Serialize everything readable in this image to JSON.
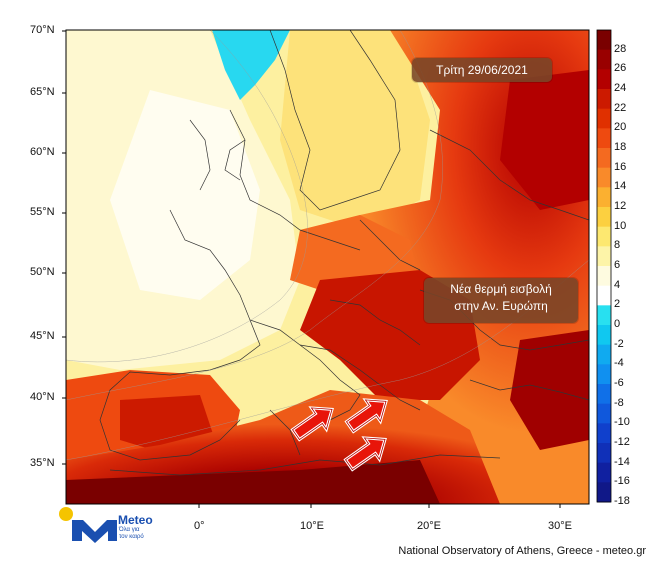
{
  "title_box": "Τρίτη 29/06/2021",
  "annotation": {
    "line1": "Νέα θερμή εισβολή",
    "line2": "στην Αν. Ευρώπη"
  },
  "latitude_labels": [
    "70°N",
    "65°N",
    "60°N",
    "55°N",
    "50°N",
    "45°N",
    "40°N",
    "35°N"
  ],
  "longitude_labels": [
    "0°",
    "10°E",
    "20°E",
    "30°E"
  ],
  "colorbar": {
    "labels": [
      "28",
      "26",
      "24",
      "22",
      "20",
      "18",
      "16",
      "14",
      "12",
      "10",
      "8",
      "6",
      "4",
      "2",
      "0",
      "-2",
      "-4",
      "-6",
      "-8",
      "-10",
      "-12",
      "-14",
      "-16",
      "-18"
    ],
    "colors": [
      "#7a0000",
      "#990000",
      "#b30000",
      "#cc1a00",
      "#e03000",
      "#ee4a10",
      "#f46a20",
      "#f98a2a",
      "#fbb030",
      "#fcd040",
      "#fde870",
      "#fdf4a8",
      "#fefbe0",
      "#ffffff",
      "#28e0f0",
      "#10c8f0",
      "#10aaf0",
      "#1090f0",
      "#1070e8",
      "#1058dc",
      "#1040cc",
      "#1030b8",
      "#1020a0",
      "#101888"
    ]
  },
  "credit": "National Observatory of Athens, Greece - meteo.gr",
  "logo": {
    "name": "Meteo",
    "tagline_1": "Όλα για",
    "tagline_2": "τον καιρό"
  },
  "arrows": 3
}
